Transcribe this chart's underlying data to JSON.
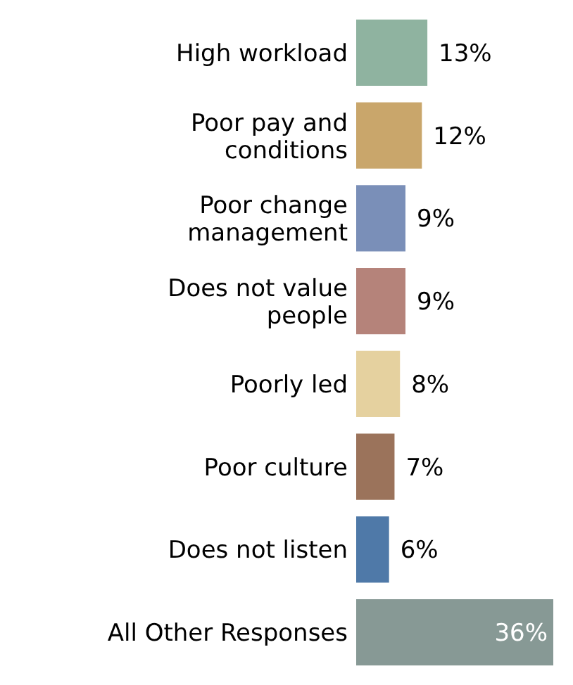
{
  "chart_data": {
    "type": "bar",
    "orientation": "horizontal",
    "categories": [
      "High workload",
      "Poor pay and conditions",
      "Poor change management",
      "Does not value people",
      "Poorly led",
      "Poor culture",
      "Does not listen",
      "All Other Responses"
    ],
    "values": [
      13,
      12,
      9,
      9,
      8,
      7,
      6,
      36
    ],
    "value_labels": [
      "13%",
      "12%",
      "9%",
      "9%",
      "8%",
      "7%",
      "6%",
      "36%"
    ],
    "colors": [
      "#8fb3a0",
      "#c9a66b",
      "#7a8fb8",
      "#b5837a",
      "#e5d19f",
      "#9b735b",
      "#4f79a8",
      "#879995"
    ]
  }
}
